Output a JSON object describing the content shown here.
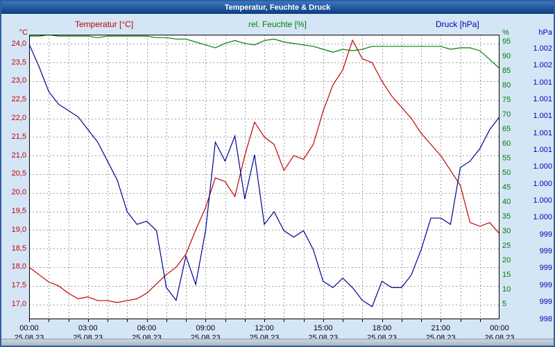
{
  "window": {
    "title": "Temperatur, Feuchte & Druck"
  },
  "legend": {
    "temperature": "Temperatur [°C]",
    "humidity": "rel. Feuchte [%]",
    "pressure": "Druck [hPa]"
  },
  "axes": {
    "left_unit": "°C",
    "humidity_unit": "%",
    "pressure_unit": "hPa",
    "temp_ticks": [
      "24,0",
      "23,5",
      "23,0",
      "22,5",
      "22,0",
      "21,5",
      "21,0",
      "20,5",
      "20,0",
      "19,5",
      "19,0",
      "18,5",
      "18,0",
      "17,5",
      "17,0"
    ],
    "humidity_ticks": [
      "95",
      "90",
      "85",
      "80",
      "75",
      "70",
      "65",
      "60",
      "55",
      "50",
      "45",
      "40",
      "35",
      "30",
      "25",
      "20",
      "15",
      "10",
      "5"
    ],
    "pressure_ticks": [
      "1.002",
      "1.002",
      "1.001",
      "1.001",
      "1.001",
      "1.001",
      "1.001",
      "1.000",
      "1.000",
      "1.000",
      "1.000",
      "999",
      "999",
      "999",
      "999",
      "999",
      "998"
    ],
    "time_ticks": [
      "00:00",
      "03:00",
      "06:00",
      "09:00",
      "12:00",
      "15:00",
      "18:00",
      "21:00",
      "00:00"
    ],
    "date_ticks": [
      "25.08.23",
      "25.08.23",
      "25.08.23",
      "25.08.23",
      "25.08.23",
      "25.08.23",
      "25.08.23",
      "25.08.23",
      "26.08.23"
    ]
  },
  "colors": {
    "temperature": "#c00000",
    "humidity": "#008000",
    "pressure": "#00008b",
    "pressure_label": "#0000b0",
    "grid": "#9aa0a6",
    "time_label": "#000000",
    "titlebar": "#0d3c7c",
    "background": "#d4e6f6"
  },
  "chart_data": {
    "type": "line",
    "title": "Temperatur, Feuchte & Druck",
    "x_min": 0,
    "x_max": 24,
    "x_hours": [
      0,
      0.5,
      1,
      1.5,
      2,
      2.5,
      3,
      3.5,
      4,
      4.5,
      5,
      5.5,
      6,
      6.5,
      7,
      7.5,
      8,
      8.5,
      9,
      9.5,
      10,
      10.5,
      11,
      11.5,
      12,
      12.5,
      13,
      13.5,
      14,
      14.5,
      15,
      15.5,
      16,
      16.5,
      17,
      17.5,
      18,
      18.5,
      19,
      19.5,
      20,
      20.5,
      21,
      21.5,
      22,
      22.5,
      23,
      23.5,
      24
    ],
    "time_tick_hours": [
      0,
      3,
      6,
      9,
      12,
      15,
      18,
      21,
      24
    ],
    "axes": {
      "temp": {
        "min": 16.6,
        "max": 24.25,
        "ticks": [
          24,
          23.5,
          23,
          22.5,
          22,
          21.5,
          21,
          20.5,
          20,
          19.5,
          19,
          18.5,
          18,
          17.5,
          17
        ]
      },
      "humidity": {
        "min": 0,
        "max": 97.5,
        "ticks": [
          95,
          90,
          85,
          80,
          75,
          70,
          65,
          60,
          55,
          50,
          45,
          40,
          35,
          30,
          25,
          20,
          15,
          10,
          5
        ]
      },
      "pressure": {
        "min": 997.9,
        "max": 1002.4
      }
    },
    "series": [
      {
        "key": "temperature",
        "name": "Temperatur [°C]",
        "axis": "temp",
        "color": "#c00000",
        "values": [
          18.0,
          17.8,
          17.6,
          17.5,
          17.3,
          17.15,
          17.2,
          17.1,
          17.1,
          17.05,
          17.1,
          17.15,
          17.3,
          17.55,
          17.8,
          18.0,
          18.35,
          19.0,
          19.6,
          20.4,
          20.3,
          19.9,
          21.0,
          21.9,
          21.5,
          21.3,
          20.6,
          21.0,
          20.9,
          21.3,
          22.2,
          22.9,
          23.3,
          24.1,
          23.6,
          23.5,
          23.0,
          22.6,
          22.3,
          22.0,
          21.6,
          21.3,
          21.0,
          20.6,
          20.2,
          19.2,
          19.1,
          19.2,
          18.9
        ]
      },
      {
        "key": "humidity",
        "name": "rel. Feuchte [%]",
        "axis": "humidity",
        "color": "#008000",
        "values": [
          97,
          97,
          97.5,
          97,
          97,
          97,
          97,
          96.5,
          97,
          97,
          97,
          97,
          97,
          96.5,
          96.5,
          96,
          96,
          95,
          94,
          93,
          94.5,
          95.5,
          94.5,
          94,
          95.5,
          96,
          95,
          94.5,
          94,
          93.5,
          92.5,
          91.5,
          92.5,
          92,
          92.5,
          93.5,
          93.5,
          93.5,
          93.5,
          93.5,
          93.5,
          93.5,
          93.5,
          92.5,
          93,
          93,
          92,
          89,
          86
        ]
      },
      {
        "key": "pressure",
        "name": "Druck [hPa]",
        "axis": "pressure",
        "color": "#00008b",
        "values": [
          1002.25,
          1001.9,
          1001.5,
          1001.3,
          1001.2,
          1001.1,
          1000.9,
          1000.7,
          1000.4,
          1000.1,
          999.6,
          999.4,
          999.45,
          999.3,
          998.4,
          998.2,
          998.9,
          998.45,
          999.3,
          1000.7,
          1000.4,
          1000.8,
          999.8,
          1000.5,
          999.4,
          999.6,
          999.3,
          999.2,
          999.3,
          999.0,
          998.5,
          998.4,
          998.55,
          998.4,
          998.2,
          998.1,
          998.5,
          998.4,
          998.4,
          998.6,
          999.0,
          999.5,
          999.5,
          999.4,
          1000.3,
          1000.4,
          1000.6,
          1000.9,
          1001.1
        ]
      }
    ]
  }
}
